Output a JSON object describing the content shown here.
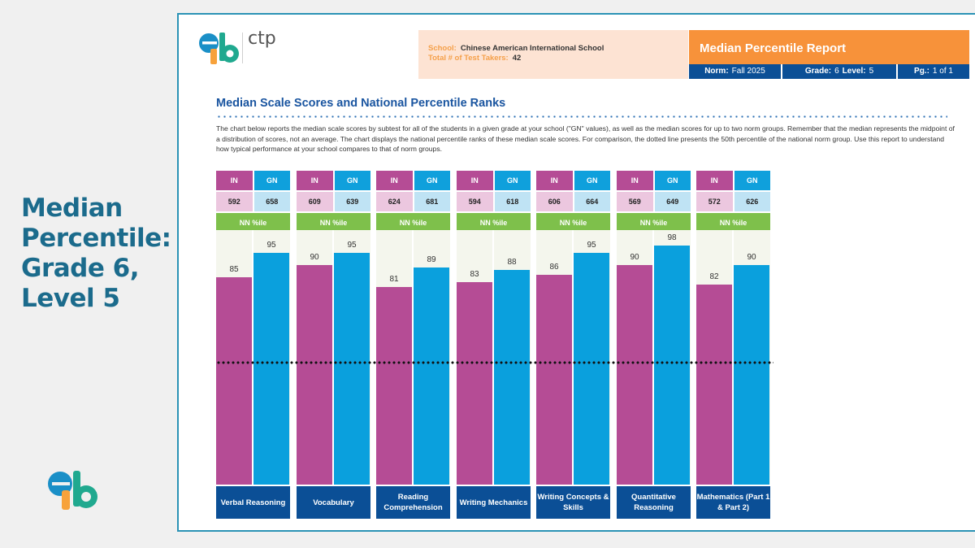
{
  "slide": {
    "title_lines": [
      "Median",
      "Percentile:",
      "Grade 6,",
      "Level 5"
    ]
  },
  "logo": {
    "brand": "erb",
    "product": "ctp"
  },
  "header": {
    "school_label": "School:",
    "school_value": "Chinese American International School",
    "takers_label": "Total # of Test Takers:",
    "takers_value": "42",
    "report_title": "Median Percentile Report",
    "norm_label": "Norm:",
    "norm_value": "Fall 2025",
    "grade_label": "Grade:",
    "grade_value": "6",
    "level_label": "Level:",
    "level_value": "5",
    "page_label": "Pg.:",
    "page_value": "1 of 1"
  },
  "section": {
    "title": "Median Scale Scores and National Percentile Ranks",
    "description": "The chart below reports the median scale scores by subtest for all of the students in a given grade at your school (\"GN\" values), as well as the median scores for up to two norm groups. Remember that the median represents the midpoint of a distribution of scores, not an average. The chart displays the national percentile ranks of these median scale scores. For comparison, the dotted line presents the 50th percentile of the national norm group. Use this report to understand how typical performance at your school compares to that of norm groups."
  },
  "colors": {
    "IN": "#b54c95",
    "GN": "#0aa0dd",
    "nn_header": "#7ec04b",
    "category": "#0b4f96",
    "accent_orange": "#f7923a"
  },
  "chart_data": {
    "type": "bar",
    "title": "Median Scale Scores and National Percentile Ranks",
    "xlabel": "",
    "ylabel": "NN %ile",
    "ylim": [
      0,
      100
    ],
    "grid": false,
    "legend": "column-headers",
    "series_header_label": "NN %ile",
    "reference_line": {
      "value": 50,
      "style": "dotted",
      "label": "50th percentile of national norm group"
    },
    "categories": [
      "Verbal Reasoning",
      "Vocabulary",
      "Reading Comprehension",
      "Writing Mechanics",
      "Writing Concepts & Skills",
      "Quantitative Reasoning",
      "Mathematics (Part 1 & Part 2)"
    ],
    "series": [
      {
        "name": "IN",
        "scale_scores": [
          592,
          609,
          624,
          594,
          606,
          569,
          572
        ],
        "values": [
          85,
          90,
          81,
          83,
          86,
          90,
          82
        ]
      },
      {
        "name": "GN",
        "scale_scores": [
          658,
          639,
          681,
          618,
          664,
          649,
          626
        ],
        "values": [
          95,
          95,
          89,
          88,
          95,
          98,
          90
        ]
      }
    ]
  }
}
